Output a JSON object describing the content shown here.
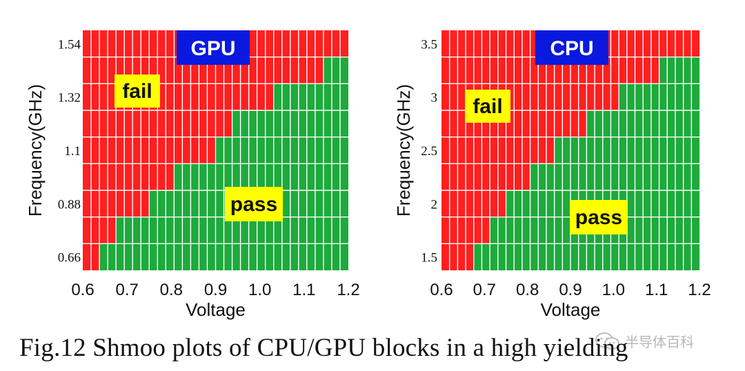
{
  "chart_data": [
    {
      "type": "heatmap",
      "title": "GPU",
      "xlabel": "Voltage",
      "ylabel": "Frequency(GHz)",
      "x_ticks": [
        "0.6",
        "0.7",
        "0.8",
        "0.9",
        "1.0",
        "1.1",
        "1.2"
      ],
      "y_ticks": [
        "0.66",
        "0.88",
        "1.1",
        "1.32",
        "1.54"
      ],
      "xlim": [
        0.6,
        1.2
      ],
      "grid_cols": 32,
      "grid_rows": 9,
      "pass_start_col_by_row": [
        33,
        30,
        24,
        19,
        17,
        12,
        9,
        5,
        3
      ],
      "region_labels": {
        "fail": "fail",
        "pass": "pass"
      },
      "colors": {
        "fail": "#ff1f1f",
        "pass": "#1eaa3c",
        "title_bg": "#0a19e0",
        "label_bg": "#ffff00"
      }
    },
    {
      "type": "heatmap",
      "title": "CPU",
      "xlabel": "Voltage",
      "ylabel": "Frequency(GHz)",
      "x_ticks": [
        "0.6",
        "0.7",
        "0.8",
        "0.9",
        "1.0",
        "1.1",
        "1.2"
      ],
      "y_ticks": [
        "1.5",
        "2",
        "2.5",
        "3",
        "3.5"
      ],
      "xlim": [
        0.6,
        1.2
      ],
      "grid_cols": 32,
      "grid_rows": 9,
      "pass_start_col_by_row": [
        33,
        28,
        23,
        19,
        15,
        12,
        9,
        7,
        5
      ],
      "region_labels": {
        "fail": "fail",
        "pass": "pass"
      },
      "colors": {
        "fail": "#ff1f1f",
        "pass": "#1eaa3c",
        "title_bg": "#0a19e0",
        "label_bg": "#ffff00"
      }
    }
  ],
  "caption": "Fig.12 Shmoo plots of CPU/GPU blocks in a high yielding",
  "watermark": "半导体百科"
}
